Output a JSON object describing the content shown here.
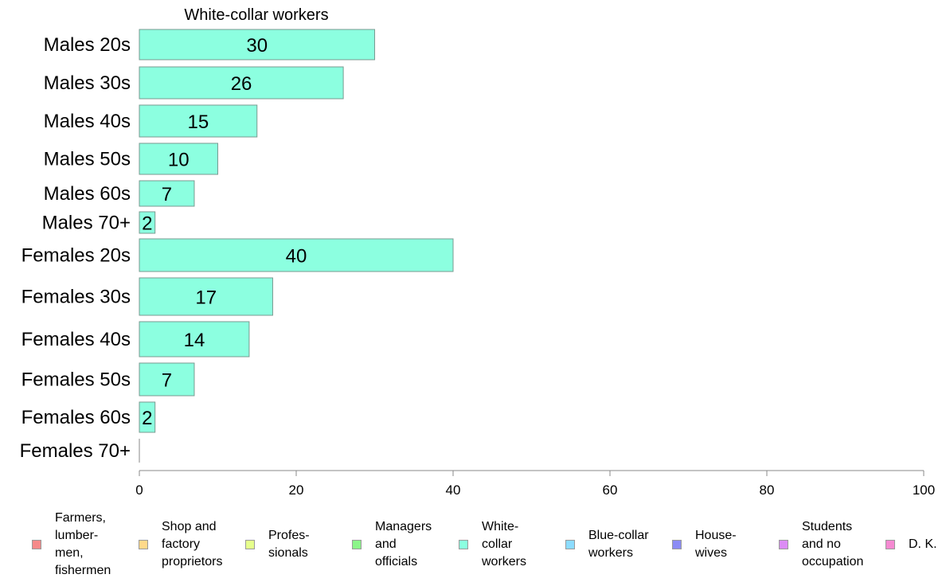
{
  "chart_data": {
    "type": "bar",
    "orientation": "horizontal",
    "title": "White-collar workers",
    "categories": [
      "Males 20s",
      "Males 30s",
      "Males 40s",
      "Males 50s",
      "Males 60s",
      "Males 70+",
      "Females 20s",
      "Females 30s",
      "Females 40s",
      "Females 50s",
      "Females 60s",
      "Females 70+"
    ],
    "values": [
      30,
      26,
      15,
      10,
      7,
      2,
      40,
      17,
      14,
      7,
      2,
      0
    ],
    "value_labels": [
      "30",
      "26",
      "15",
      "10",
      "7",
      "2",
      "40",
      "17",
      "14",
      "7",
      "2",
      ""
    ],
    "xlim": [
      0,
      100
    ],
    "x_ticks": [
      "0",
      "20",
      "40",
      "60",
      "80",
      "100"
    ],
    "bar_color": "#8cffe0",
    "grid": false,
    "legend_position": "bottom",
    "legend": [
      {
        "label": "Farmers,\nlumber-\nmen,\nfishermen",
        "color": "#f58a8a"
      },
      {
        "label": "Shop and\nfactory\nproprietors",
        "color": "#ffd98a"
      },
      {
        "label": "Profes-\nsionals",
        "color": "#e6ff8c"
      },
      {
        "label": "Managers\nand\nofficials",
        "color": "#8cf58a"
      },
      {
        "label": "White-\ncollar\nworkers",
        "color": "#8cffe0"
      },
      {
        "label": "Blue-collar\nworkers",
        "color": "#8cdcff"
      },
      {
        "label": "House-\nwives",
        "color": "#8c8cf5"
      },
      {
        "label": "Students\nand no\noccupation",
        "color": "#dc8cf5"
      },
      {
        "label": "D. K.",
        "color": "#f58ad2"
      }
    ]
  }
}
